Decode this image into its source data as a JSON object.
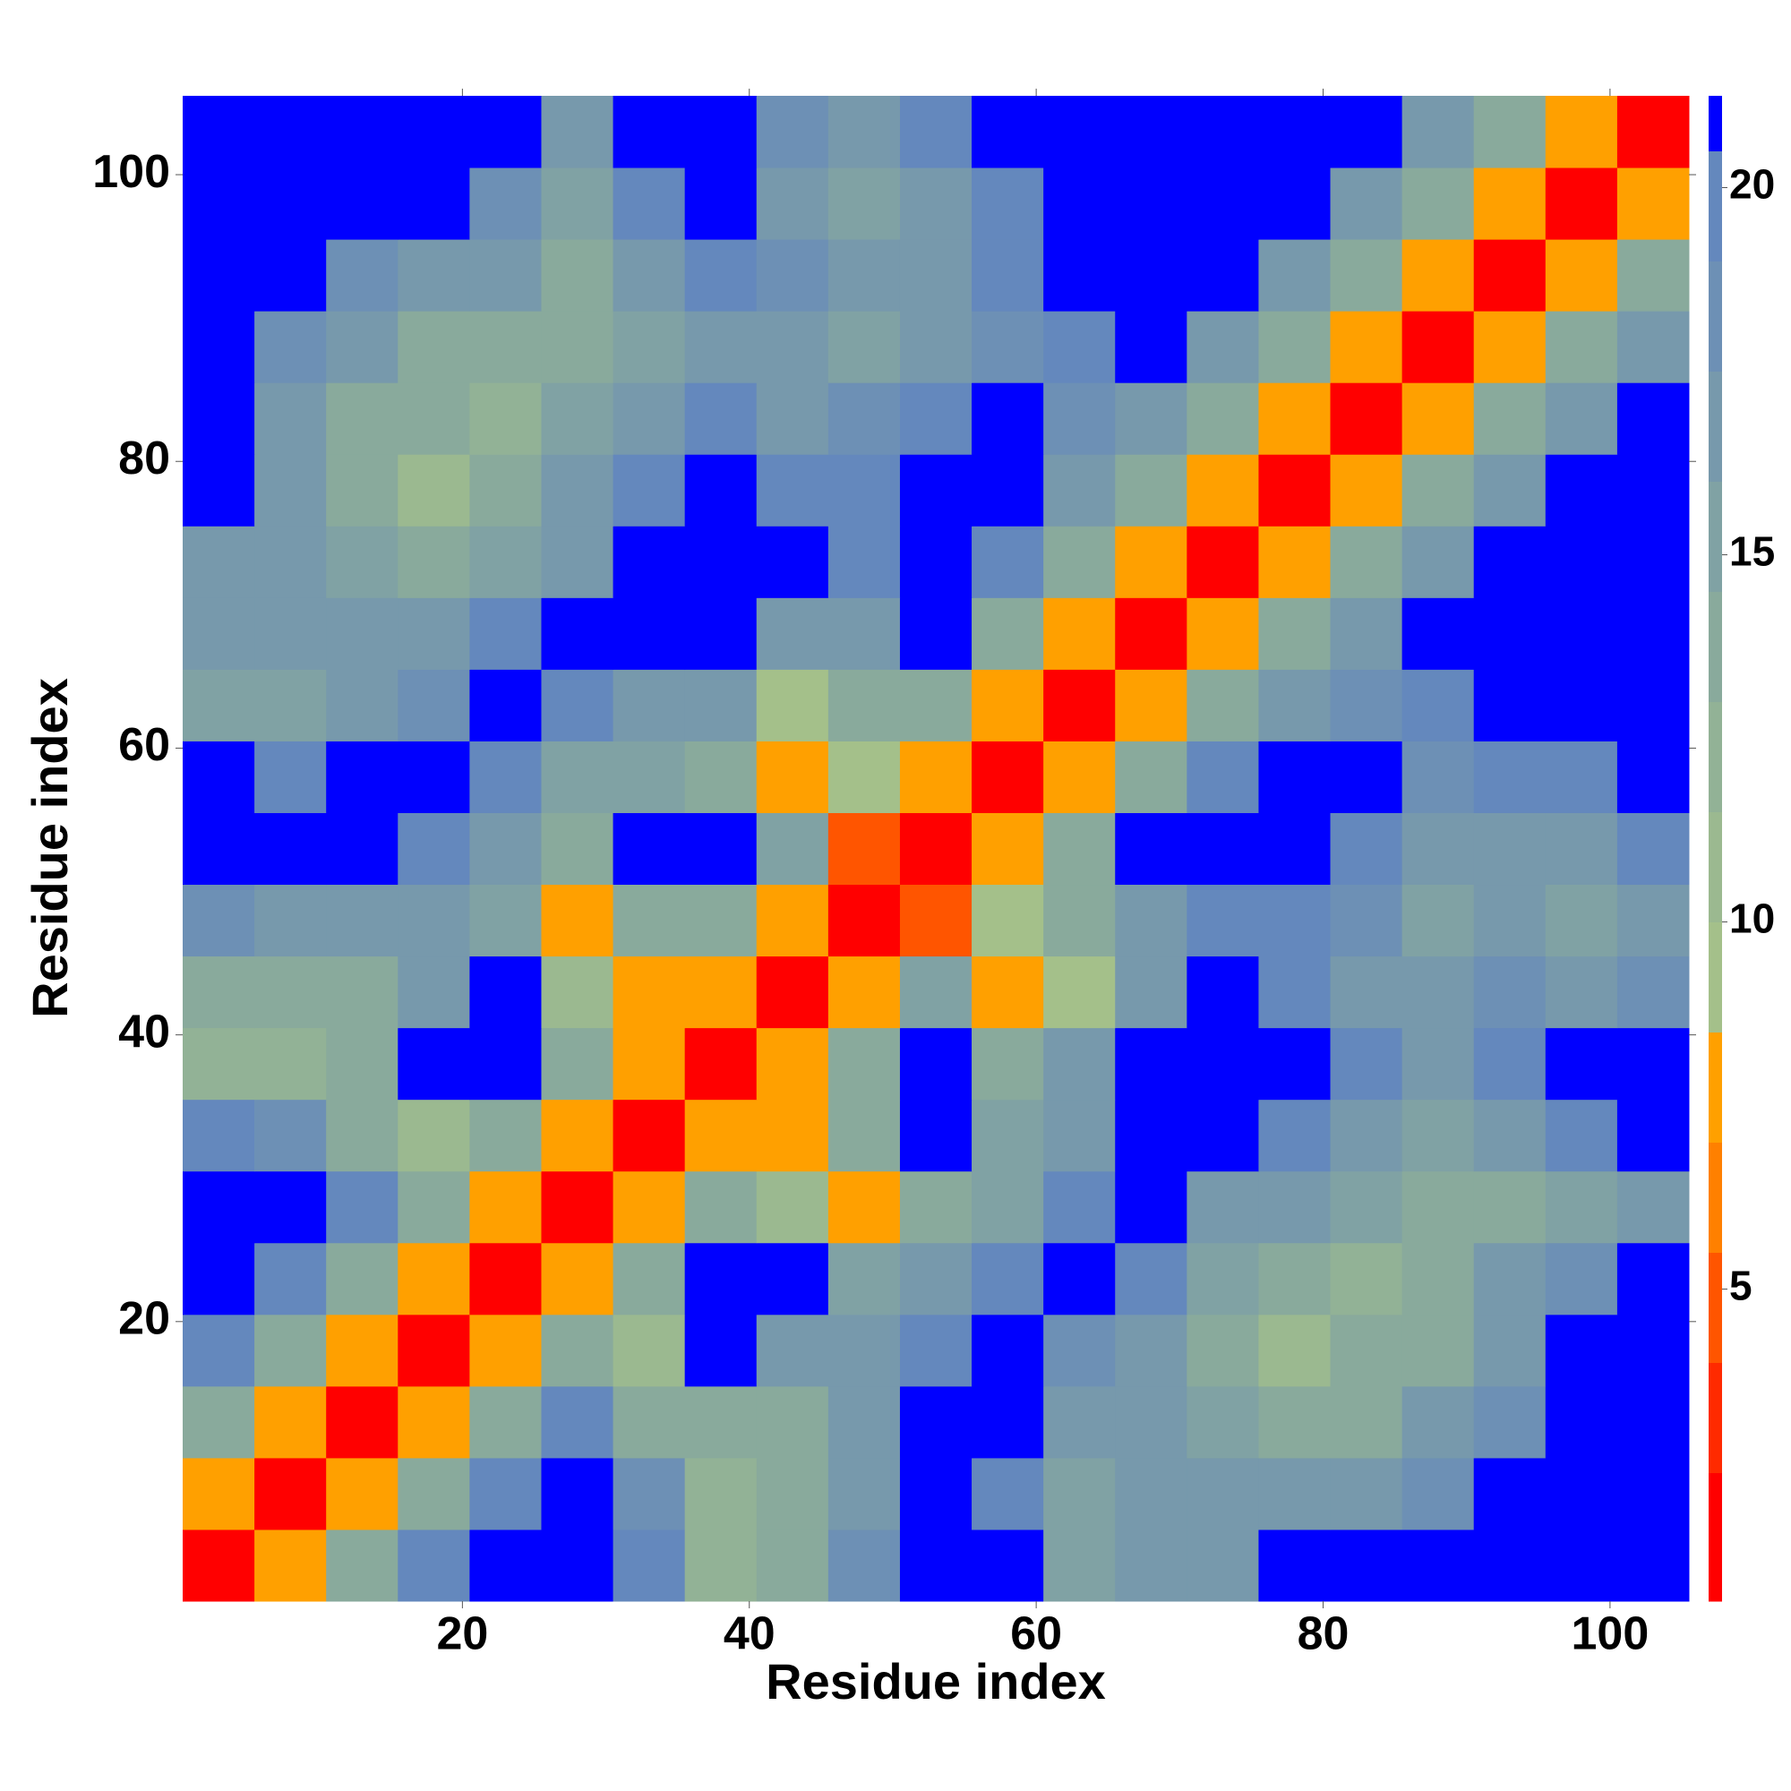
{
  "chart_data": {
    "type": "heatmap",
    "xlabel": "Residue index",
    "ylabel": "Residue index",
    "xbins": [
      0.5,
      5.5,
      10.5,
      15.5,
      20.5,
      25.5,
      30.5,
      35.5,
      40.5,
      45.5,
      50.5,
      55.5,
      60.5,
      65.5,
      70.5,
      75.5,
      80.5,
      85.5,
      90.5,
      95.5,
      100.5,
      105.5
    ],
    "ybins": [
      0.5,
      5.5,
      10.5,
      15.5,
      20.5,
      25.5,
      30.5,
      35.5,
      40.5,
      45.5,
      50.5,
      55.5,
      60.5,
      65.5,
      70.5,
      75.5,
      80.5,
      85.5,
      90.5,
      95.5,
      100.5,
      105.5
    ],
    "xlim": [
      0.5,
      105.5
    ],
    "ylim": [
      0.5,
      105.5
    ],
    "xticks": [
      20,
      40,
      60,
      80,
      100
    ],
    "yticks": [
      20,
      40,
      60,
      80,
      100
    ],
    "clim": [
      0.75,
      21.25
    ],
    "cticks": [
      5,
      10,
      15,
      20
    ],
    "color_levels": [
      0.75,
      2.5,
      4,
      5.5,
      7,
      8.5,
      10,
      11.5,
      13,
      14.5,
      16,
      17.5,
      19,
      20.5,
      21.25
    ],
    "colors": [
      "#ff0000",
      "#ff2a00",
      "#ff5500",
      "#ff8000",
      "#ffa000",
      "#a4c08a",
      "#9bb990",
      "#92b296",
      "#89aa9c",
      "#80a2a4",
      "#7799ac",
      "#6d90b5",
      "#6488bd",
      "#0000ff"
    ],
    "z": [
      [
        2,
        8,
        14,
        19,
        22,
        22,
        20,
        12,
        13,
        18,
        22,
        22,
        15,
        16,
        17,
        22,
        22,
        22,
        22,
        22,
        22
      ],
      [
        8,
        2,
        8,
        14,
        19,
        22,
        18,
        12,
        13,
        16,
        22,
        20,
        15,
        16,
        16,
        17,
        16,
        18,
        22,
        22,
        22
      ],
      [
        14,
        8,
        2,
        8,
        14,
        19,
        14,
        13,
        13,
        17,
        22,
        22,
        16,
        17,
        15,
        13,
        14,
        16,
        18,
        22,
        22
      ],
      [
        19,
        14,
        8,
        2,
        8,
        13,
        11,
        22,
        16,
        16,
        20,
        22,
        18,
        17,
        14,
        11,
        13,
        14,
        17,
        21,
        22
      ],
      [
        22,
        19,
        14,
        8,
        2,
        7,
        13,
        22,
        22,
        15,
        16,
        20,
        22,
        19,
        15,
        13,
        12,
        14,
        16,
        18,
        21
      ],
      [
        22,
        22,
        19,
        13,
        7,
        2,
        7,
        13,
        11,
        8,
        13,
        15,
        19,
        22,
        17,
        16,
        15,
        13,
        14,
        15,
        17
      ],
      [
        20,
        18,
        14,
        11,
        13,
        7,
        2,
        7,
        8,
        13,
        22,
        15,
        16,
        22,
        22,
        20,
        16,
        15,
        17,
        19,
        22
      ],
      [
        12,
        12,
        13,
        22,
        22,
        13,
        7,
        2,
        7,
        14,
        22,
        13,
        17,
        22,
        22,
        22,
        19,
        17,
        20,
        22,
        22
      ],
      [
        13,
        13,
        13,
        16,
        22,
        11,
        8,
        7,
        2,
        7,
        15,
        8,
        9,
        17,
        21,
        19,
        17,
        16,
        18,
        17,
        18
      ],
      [
        18,
        16,
        17,
        16,
        15,
        8,
        13,
        14,
        7,
        2,
        5,
        9,
        14,
        17,
        20,
        19,
        18,
        15,
        16,
        15,
        16
      ],
      [
        22,
        22,
        22,
        20,
        16,
        13,
        22,
        22,
        15,
        5,
        2,
        8,
        13,
        22,
        22,
        22,
        19,
        16,
        17,
        16,
        19
      ],
      [
        22,
        20,
        22,
        22,
        20,
        15,
        15,
        13,
        8,
        9,
        8,
        2,
        8,
        14,
        20,
        22,
        22,
        18,
        19,
        20,
        21
      ],
      [
        15,
        15,
        16,
        18,
        22,
        19,
        16,
        17,
        9,
        14,
        13,
        8,
        2,
        7,
        13,
        16,
        18,
        20,
        22,
        22,
        22
      ],
      [
        16,
        16,
        17,
        17,
        19,
        22,
        22,
        22,
        17,
        17,
        22,
        14,
        7,
        2,
        7,
        13,
        17,
        22,
        22,
        22,
        22
      ],
      [
        17,
        16,
        15,
        14,
        15,
        17,
        22,
        22,
        21,
        20,
        22,
        20,
        13,
        7,
        2,
        8,
        13,
        17,
        21,
        22,
        22
      ],
      [
        22,
        17,
        13,
        11,
        13,
        16,
        20,
        22,
        19,
        19,
        22,
        22,
        16,
        13,
        8,
        2,
        8,
        13,
        17,
        21,
        22
      ],
      [
        22,
        16,
        14,
        13,
        12,
        15,
        16,
        19,
        17,
        18,
        19,
        22,
        18,
        17,
        13,
        8,
        2,
        8,
        13,
        17,
        21
      ],
      [
        22,
        18,
        16,
        14,
        14,
        13,
        15,
        17,
        16,
        15,
        16,
        18,
        20,
        22,
        17,
        13,
        8,
        2,
        8,
        13,
        17
      ],
      [
        22,
        22,
        18,
        17,
        16,
        14,
        17,
        20,
        18,
        16,
        17,
        19,
        22,
        22,
        21,
        17,
        13,
        8,
        2,
        8,
        13
      ],
      [
        22,
        22,
        22,
        21,
        18,
        15,
        19,
        22,
        17,
        15,
        16,
        20,
        22,
        22,
        22,
        21,
        17,
        13,
        8,
        2,
        8
      ],
      [
        22,
        22,
        22,
        22,
        21,
        17,
        22,
        22,
        18,
        16,
        19,
        21,
        22,
        22,
        22,
        22,
        21,
        17,
        13,
        8,
        2
      ]
    ]
  }
}
